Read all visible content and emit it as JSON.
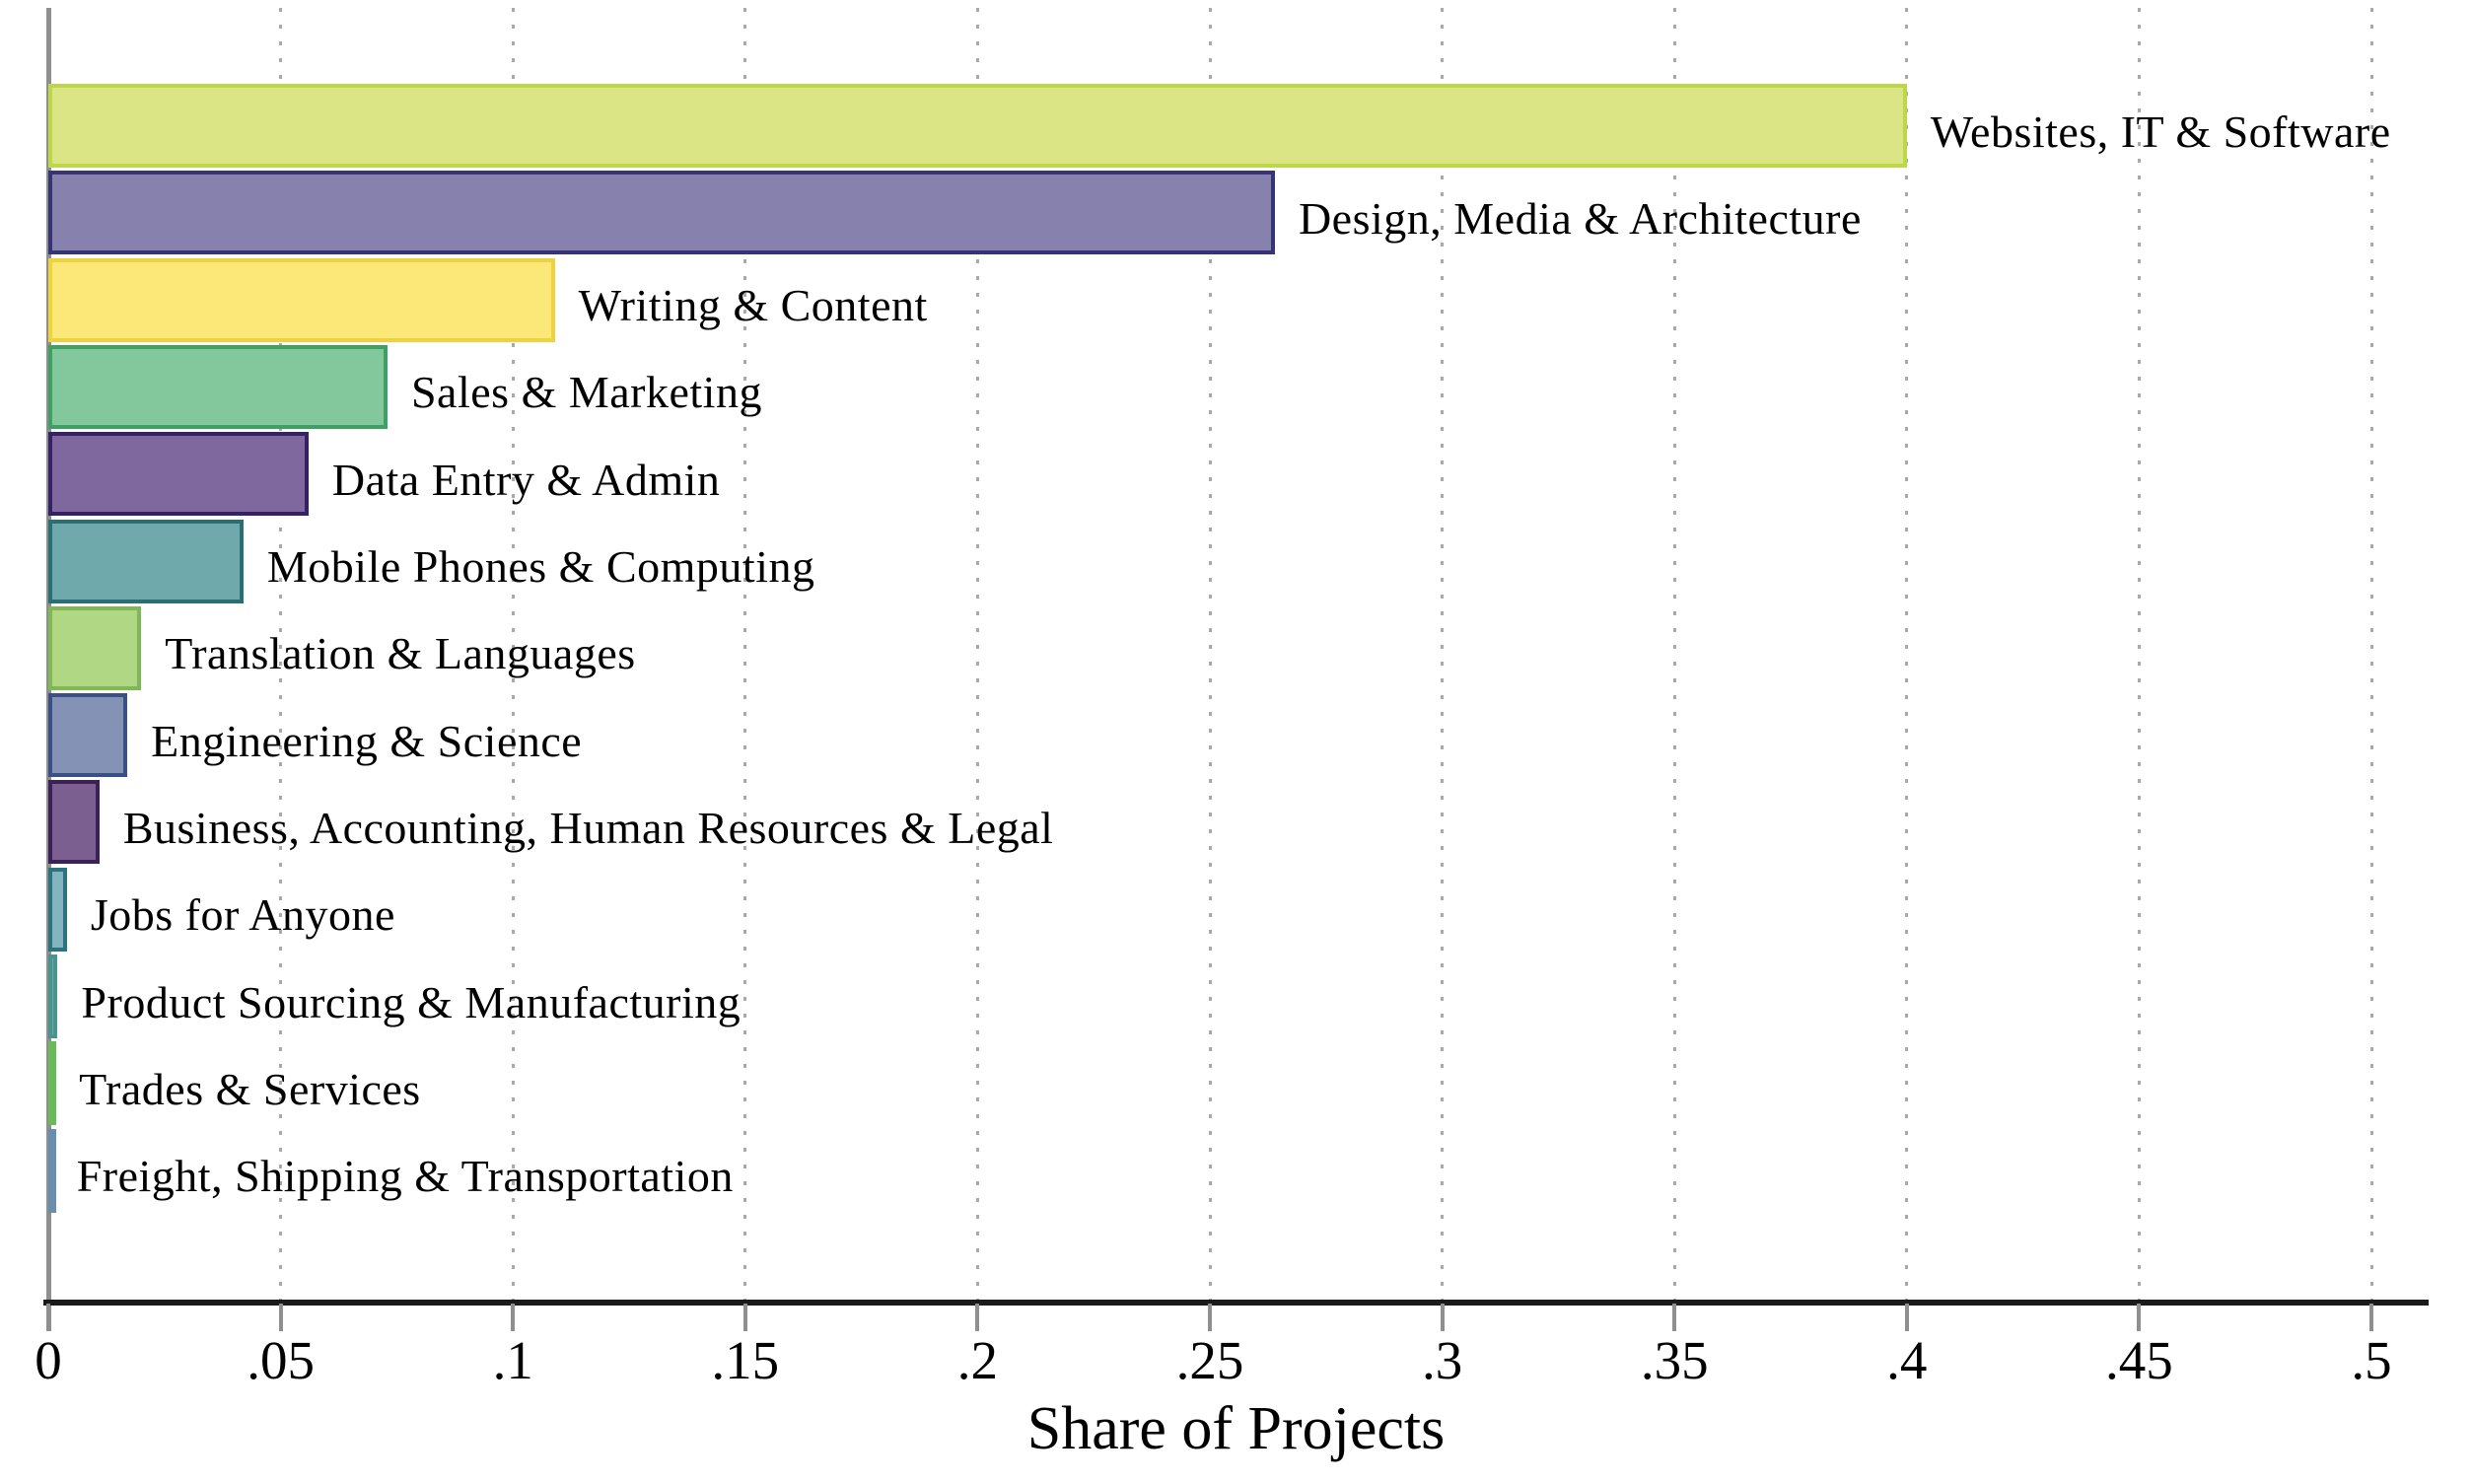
{
  "chart_data": {
    "type": "bar",
    "orientation": "horizontal",
    "title": "",
    "xlabel": "Share of Projects",
    "ylabel": "",
    "xlim": [
      0,
      0.5
    ],
    "grid": "vertical-dotted",
    "legend": "none",
    "xtick_values": [
      0,
      0.05,
      0.1,
      0.15,
      0.2,
      0.25,
      0.3,
      0.35,
      0.4,
      0.45,
      0.5
    ],
    "xtick_labels": [
      "0",
      ".05",
      ".1",
      ".15",
      ".2",
      ".25",
      ".3",
      ".35",
      ".4",
      ".45",
      ".5"
    ],
    "categories": [
      "Websites, IT & Software",
      "Design, Media & Architecture",
      "Writing & Content",
      "Sales & Marketing",
      "Data Entry & Admin",
      "Mobile Phones & Computing",
      "Translation & Languages",
      "Engineering & Science",
      "Business, Accounting, Human Resources & Legal",
      "Jobs for Anyone",
      "Product Sourcing & Manufacturing",
      "Trades & Services",
      "Freight, Shipping & Transportation"
    ],
    "values": [
      0.4,
      0.264,
      0.109,
      0.073,
      0.056,
      0.042,
      0.02,
      0.017,
      0.011,
      0.004,
      0.002,
      0.0015,
      0.001
    ],
    "bars": [
      {
        "label": "Websites, IT & Software",
        "value": 0.4,
        "fill": "#dbe586",
        "border": "#bdd74b"
      },
      {
        "label": "Design, Media & Architecture",
        "value": 0.264,
        "fill": "#8781ae",
        "border": "#363472"
      },
      {
        "label": "Writing & Content",
        "value": 0.109,
        "fill": "#fce878",
        "border": "#eed23e"
      },
      {
        "label": "Sales & Marketing",
        "value": 0.073,
        "fill": "#83c79c",
        "border": "#3f9f64"
      },
      {
        "label": "Data Entry & Admin",
        "value": 0.056,
        "fill": "#7f689e",
        "border": "#342264"
      },
      {
        "label": "Mobile Phones & Computing",
        "value": 0.042,
        "fill": "#6fa9ac",
        "border": "#2b6e73"
      },
      {
        "label": "Translation & Languages",
        "value": 0.02,
        "fill": "#b0d783",
        "border": "#7fb854"
      },
      {
        "label": "Engineering & Science",
        "value": 0.017,
        "fill": "#8492b6",
        "border": "#3a5085"
      },
      {
        "label": "Business, Accounting, Human Resources & Legal",
        "value": 0.011,
        "fill": "#7c5f91",
        "border": "#3b2158"
      },
      {
        "label": "Jobs for Anyone",
        "value": 0.004,
        "fill": "#84b4bd",
        "border": "#2c7380"
      },
      {
        "label": "Product Sourcing & Manufacturing",
        "value": 0.002,
        "fill": "#6caba1",
        "border": "#4a9390"
      },
      {
        "label": "Trades & Services",
        "value": 0.0015,
        "fill": "#8bc979",
        "border": "#6cba57"
      },
      {
        "label": "Freight, Shipping & Transportation",
        "value": 0.001,
        "fill": "#7e9cb9",
        "border": "#6a8fae"
      }
    ],
    "colors": {
      "axis_line": "#1a1a1a",
      "spine_and_ticks": "#8f8f8f",
      "gridline": "#a9a9a9",
      "text": "#000000",
      "background": "#ffffff"
    }
  }
}
